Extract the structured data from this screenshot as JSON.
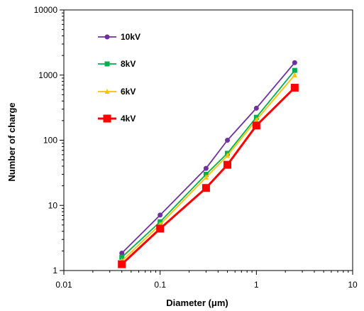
{
  "chart_data": {
    "type": "line",
    "xlabel": "Diameter (μm)",
    "ylabel": "Number of charge",
    "x_scale": "log",
    "y_scale": "log",
    "xlim": [
      0.01,
      10
    ],
    "ylim": [
      1,
      10000
    ],
    "x_ticks": [
      "0.01",
      "0.1",
      "1",
      "10"
    ],
    "y_ticks": [
      "1",
      "10",
      "100",
      "1000",
      "10000"
    ],
    "grid": false,
    "legend_position": "top-left",
    "x": [
      0.04,
      0.1,
      0.3,
      0.5,
      1,
      2.5
    ],
    "series": [
      {
        "name": "10kV",
        "color": "#7030a0",
        "marker": "circle",
        "values": [
          1.85,
          7.1,
          37,
          100,
          310,
          1550
        ]
      },
      {
        "name": "8kV",
        "color": "#00b050",
        "marker": "square",
        "values": [
          1.6,
          5.6,
          30,
          63,
          225,
          1180
        ]
      },
      {
        "name": "6kV",
        "color": "#ffc000",
        "marker": "triangle",
        "values": [
          1.4,
          5.1,
          27,
          58,
          205,
          1000
        ]
      },
      {
        "name": "4kV",
        "color": "#ff0000",
        "marker": "square",
        "values": [
          1.25,
          4.4,
          18.5,
          42,
          168,
          640
        ]
      }
    ]
  }
}
